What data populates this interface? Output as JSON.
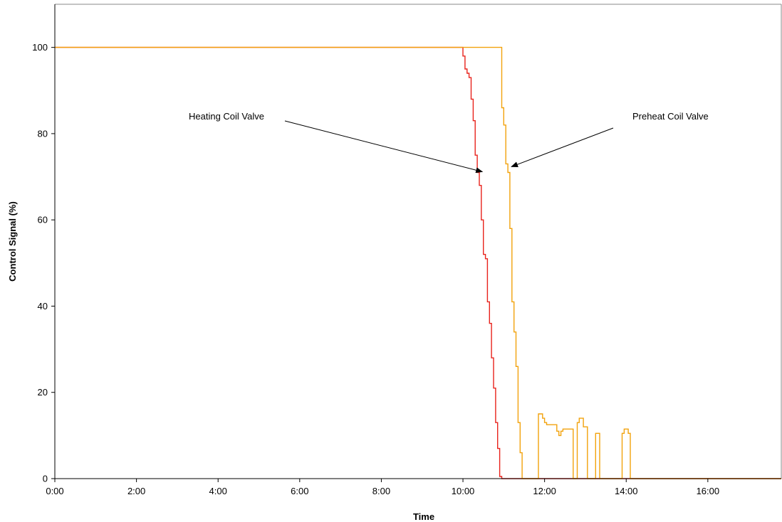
{
  "chart_data": {
    "type": "line",
    "title": "",
    "xlabel": "Time",
    "ylabel": "Control Signal (%)",
    "x_unit": "hours",
    "xlim": [
      0,
      17.8
    ],
    "ylim": [
      0,
      110
    ],
    "x_ticks": [
      {
        "value": 0,
        "label": "0:00"
      },
      {
        "value": 2,
        "label": "2:00"
      },
      {
        "value": 4,
        "label": "4:00"
      },
      {
        "value": 6,
        "label": "6:00"
      },
      {
        "value": 8,
        "label": "8:00"
      },
      {
        "value": 10,
        "label": "10:00"
      },
      {
        "value": 12,
        "label": "12:00"
      },
      {
        "value": 14,
        "label": "14:00"
      },
      {
        "value": 16,
        "label": "16:00"
      }
    ],
    "y_ticks": [
      {
        "value": 0,
        "label": "0"
      },
      {
        "value": 20,
        "label": "20"
      },
      {
        "value": 40,
        "label": "40"
      },
      {
        "value": 60,
        "label": "60"
      },
      {
        "value": 80,
        "label": "80"
      },
      {
        "value": 100,
        "label": "100"
      }
    ],
    "grid": false,
    "legend": "none",
    "series": [
      {
        "color": "#e8231c",
        "step": true,
        "points": [
          [
            0,
            100
          ],
          [
            9.95,
            100
          ],
          [
            10.0,
            98
          ],
          [
            10.05,
            95
          ],
          [
            10.1,
            94
          ],
          [
            10.15,
            93
          ],
          [
            10.2,
            88
          ],
          [
            10.25,
            83
          ],
          [
            10.3,
            75
          ],
          [
            10.35,
            71
          ],
          [
            10.4,
            68
          ],
          [
            10.45,
            60
          ],
          [
            10.5,
            52
          ],
          [
            10.55,
            51
          ],
          [
            10.6,
            41
          ],
          [
            10.65,
            36
          ],
          [
            10.7,
            28
          ],
          [
            10.75,
            21
          ],
          [
            10.8,
            13
          ],
          [
            10.85,
            7
          ],
          [
            10.9,
            0.5
          ],
          [
            10.95,
            0
          ],
          [
            17.8,
            0
          ]
        ]
      },
      {
        "color": "#f2a20c",
        "step": true,
        "points": [
          [
            0,
            100
          ],
          [
            10.9,
            100
          ],
          [
            10.95,
            86
          ],
          [
            11.0,
            82
          ],
          [
            11.05,
            73
          ],
          [
            11.1,
            71
          ],
          [
            11.15,
            58
          ],
          [
            11.2,
            41
          ],
          [
            11.25,
            34
          ],
          [
            11.3,
            26
          ],
          [
            11.35,
            13
          ],
          [
            11.4,
            6
          ],
          [
            11.45,
            0
          ],
          [
            11.8,
            0
          ],
          [
            11.85,
            15
          ],
          [
            11.9,
            15
          ],
          [
            11.95,
            14
          ],
          [
            12.0,
            13
          ],
          [
            12.05,
            12.5
          ],
          [
            12.3,
            11
          ],
          [
            12.35,
            10
          ],
          [
            12.4,
            11
          ],
          [
            12.45,
            11.5
          ],
          [
            12.65,
            11.5
          ],
          [
            12.7,
            0
          ],
          [
            12.75,
            0
          ],
          [
            12.8,
            13
          ],
          [
            12.85,
            14
          ],
          [
            12.9,
            14
          ],
          [
            12.95,
            12
          ],
          [
            13.0,
            12
          ],
          [
            13.05,
            0
          ],
          [
            13.2,
            0
          ],
          [
            13.25,
            10.5
          ],
          [
            13.3,
            10.5
          ],
          [
            13.35,
            0
          ],
          [
            13.85,
            0
          ],
          [
            13.9,
            10.5
          ],
          [
            13.95,
            11.5
          ],
          [
            14.0,
            11.5
          ],
          [
            14.05,
            10.5
          ],
          [
            14.1,
            0
          ],
          [
            17.8,
            0
          ]
        ]
      }
    ],
    "annotations": [
      {
        "text": "Heating Coil Valve",
        "arrow_to": [
          10.3,
          71
        ]
      },
      {
        "text": "Preheat Coil Valve",
        "arrow_to": [
          11.1,
          72
        ]
      }
    ]
  }
}
